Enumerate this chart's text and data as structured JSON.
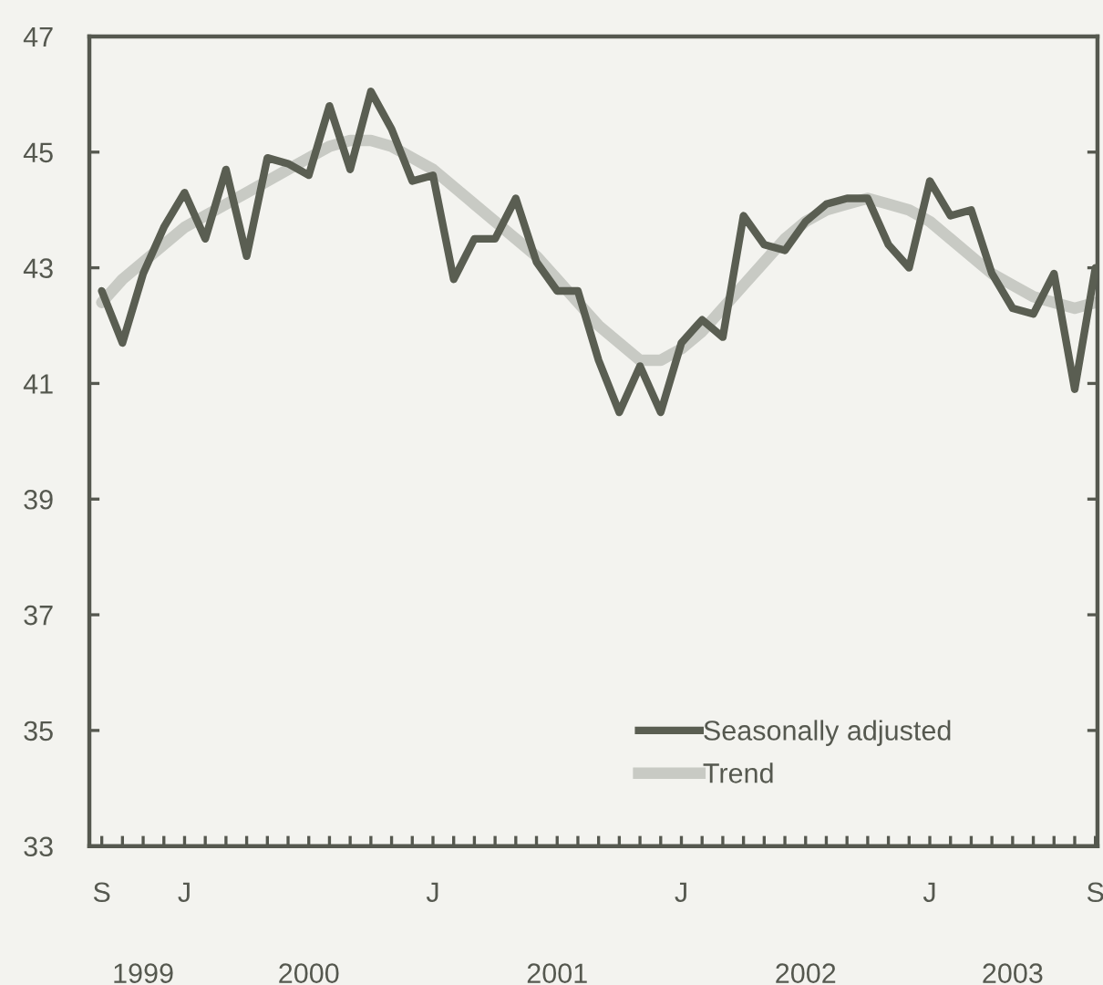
{
  "chart_data": {
    "type": "line",
    "categories": [
      "S",
      null,
      null,
      null,
      "J",
      null,
      null,
      null,
      null,
      null,
      null,
      null,
      null,
      null,
      null,
      null,
      "J",
      null,
      null,
      null,
      null,
      null,
      null,
      null,
      null,
      null,
      null,
      null,
      "J",
      null,
      null,
      null,
      null,
      null,
      null,
      null,
      null,
      null,
      null,
      null,
      "J",
      null,
      null,
      null,
      null,
      null,
      null,
      null,
      "S"
    ],
    "series": [
      {
        "name": "Seasonally adjusted",
        "color": "#5a5e52",
        "values": [
          42.6,
          41.7,
          42.9,
          43.7,
          44.3,
          43.5,
          44.7,
          43.2,
          44.9,
          44.8,
          44.6,
          45.8,
          44.7,
          46.05,
          45.4,
          44.5,
          44.6,
          42.8,
          43.5,
          43.5,
          44.2,
          43.1,
          42.6,
          42.6,
          41.4,
          40.5,
          41.3,
          40.5,
          41.7,
          42.1,
          41.8,
          43.9,
          43.4,
          43.3,
          43.8,
          44.1,
          44.2,
          44.2,
          43.4,
          43.0,
          44.5,
          43.9,
          44.0,
          42.9,
          42.3,
          42.2,
          42.9,
          40.9,
          43.0
        ]
      },
      {
        "name": "Trend",
        "color": "#c8cac4",
        "values": [
          42.4,
          42.8,
          43.1,
          43.4,
          43.7,
          43.9,
          44.1,
          44.3,
          44.5,
          44.7,
          44.9,
          45.1,
          45.2,
          45.2,
          45.1,
          44.9,
          44.7,
          44.4,
          44.1,
          43.8,
          43.5,
          43.2,
          42.8,
          42.4,
          42.0,
          41.7,
          41.4,
          41.4,
          41.6,
          41.9,
          42.3,
          42.7,
          43.1,
          43.5,
          43.8,
          44.0,
          44.1,
          44.2,
          44.1,
          44.0,
          43.8,
          43.5,
          43.2,
          42.9,
          42.7,
          42.5,
          42.4,
          42.3,
          42.4
        ]
      }
    ],
    "annotations": [
      "1999",
      "2000",
      "2001",
      "2002",
      "2003"
    ],
    "ylim": [
      33,
      47
    ],
    "yticks": [
      33,
      35,
      37,
      39,
      41,
      43,
      45,
      47
    ],
    "legend": "bottom right",
    "line_style": "solid"
  }
}
